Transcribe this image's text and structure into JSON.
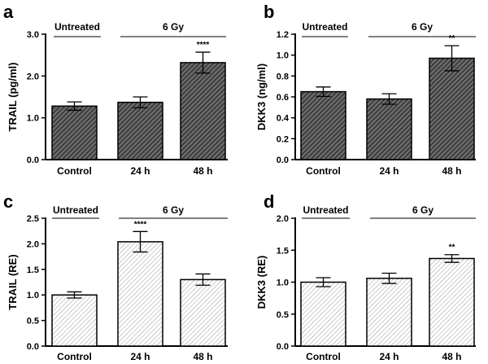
{
  "chart_data": [
    {
      "type": "bar",
      "panel": "a",
      "group_labels": [
        "Untreated",
        "6 Gy"
      ],
      "categories": [
        "Control",
        "24 h",
        "48 h"
      ],
      "values": [
        1.28,
        1.37,
        2.32
      ],
      "errors": [
        0.1,
        0.13,
        0.25
      ],
      "significance": [
        "",
        "",
        "****"
      ],
      "ylabel": "TRAIL (pg/ml)",
      "ylim": [
        0,
        3.0
      ],
      "yticks": [
        "0.0",
        "1.0",
        "2.0",
        "3.0"
      ],
      "fill": "dark-hatch"
    },
    {
      "type": "bar",
      "panel": "b",
      "group_labels": [
        "Untreated",
        "6 Gy"
      ],
      "categories": [
        "Control",
        "24 h",
        "48 h"
      ],
      "values": [
        0.65,
        0.58,
        0.97
      ],
      "errors": [
        0.045,
        0.05,
        0.12
      ],
      "significance": [
        "",
        "",
        "**"
      ],
      "ylabel": "DKK3 (ng/ml)",
      "ylim": [
        0,
        1.2
      ],
      "yticks": [
        "0.0",
        "0.2",
        "0.4",
        "0.6",
        "0.8",
        "1.0",
        "1.2"
      ],
      "fill": "dark-hatch"
    },
    {
      "type": "bar",
      "panel": "c",
      "group_labels": [
        "Untreated",
        "6 Gy"
      ],
      "categories": [
        "Control",
        "24 h",
        "48 h"
      ],
      "values": [
        1.0,
        2.04,
        1.3
      ],
      "errors": [
        0.06,
        0.2,
        0.11
      ],
      "significance": [
        "",
        "****",
        ""
      ],
      "ylabel": "TRAIL (RE)",
      "ylim": [
        0,
        2.5
      ],
      "yticks": [
        "0.0",
        "0.5",
        "1.0",
        "1.5",
        "2.0",
        "2.5"
      ],
      "fill": "light-hatch"
    },
    {
      "type": "bar",
      "panel": "d",
      "group_labels": [
        "Untreated",
        "6 Gy"
      ],
      "categories": [
        "Control",
        "24 h",
        "48 h"
      ],
      "values": [
        1.0,
        1.06,
        1.37
      ],
      "errors": [
        0.07,
        0.08,
        0.06
      ],
      "significance": [
        "",
        "",
        "**"
      ],
      "ylabel": "DKK3 (RE)",
      "ylim": [
        0,
        2.0
      ],
      "yticks": [
        "0.0",
        "0.5",
        "1.0",
        "1.5",
        "2.0"
      ],
      "fill": "light-hatch"
    }
  ]
}
